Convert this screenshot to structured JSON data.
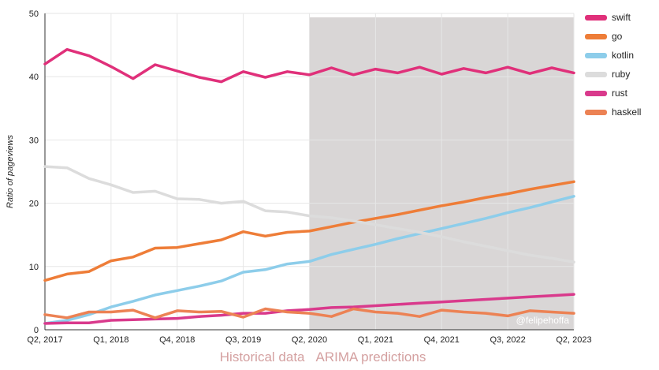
{
  "chart_data": {
    "type": "line",
    "title": "",
    "xlabel": "",
    "ylabel": "Ratio of pageviews",
    "ylim": [
      0,
      50
    ],
    "y_ticks": [
      0,
      10,
      20,
      30,
      40,
      50
    ],
    "x_count": 25,
    "x_tick_labels": [
      {
        "index": 0,
        "label": "Q2, 2017"
      },
      {
        "index": 3,
        "label": "Q1, 2018"
      },
      {
        "index": 6,
        "label": "Q4, 2018"
      },
      {
        "index": 9,
        "label": "Q3, 2019"
      },
      {
        "index": 12,
        "label": "Q2, 2020"
      },
      {
        "index": 15,
        "label": "Q1, 2021"
      },
      {
        "index": 18,
        "label": "Q4, 2021"
      },
      {
        "index": 21,
        "label": "Q3, 2022"
      },
      {
        "index": 24,
        "label": "Q2, 2023"
      }
    ],
    "grid": true,
    "prediction_start_index": 12,
    "region_labels": {
      "historical": "Historical data",
      "predictions": "ARIMA predictions"
    },
    "legend_position": "right",
    "annotation": "@felipehoffa",
    "series": [
      {
        "name": "swift",
        "color": "#e0307a",
        "values": [
          42.0,
          44.3,
          43.3,
          41.6,
          39.7,
          41.9,
          40.9,
          39.9,
          39.2,
          40.8,
          39.9,
          40.8,
          40.3,
          41.4,
          40.3,
          41.2,
          40.6,
          41.5,
          40.4,
          41.3,
          40.6,
          41.5,
          40.5,
          41.4,
          40.6
        ]
      },
      {
        "name": "go",
        "color": "#ee7d38",
        "values": [
          7.8,
          8.8,
          9.2,
          10.9,
          11.5,
          12.9,
          13.0,
          13.6,
          14.2,
          15.5,
          14.8,
          15.4,
          15.6,
          16.3,
          17.0,
          17.6,
          18.2,
          18.9,
          19.6,
          20.2,
          20.9,
          21.5,
          22.2,
          22.8,
          23.4
        ]
      },
      {
        "name": "kotlin",
        "color": "#8dcdea",
        "values": [
          1.0,
          1.5,
          2.4,
          3.6,
          4.5,
          5.5,
          6.2,
          6.9,
          7.7,
          9.1,
          9.5,
          10.4,
          10.8,
          11.9,
          12.7,
          13.5,
          14.4,
          15.2,
          16.0,
          16.8,
          17.6,
          18.5,
          19.3,
          20.2,
          21.1
        ]
      },
      {
        "name": "ruby",
        "color": "#dcdcdc",
        "values": [
          25.8,
          25.6,
          23.9,
          22.9,
          21.7,
          21.9,
          20.7,
          20.6,
          20.0,
          20.3,
          18.8,
          18.6,
          18.0,
          17.7,
          17.2,
          16.6,
          16.0,
          15.4,
          14.7,
          13.9,
          13.2,
          12.5,
          11.8,
          11.3,
          10.7
        ]
      },
      {
        "name": "rust",
        "color": "#d93a8c",
        "values": [
          1.0,
          1.1,
          1.1,
          1.5,
          1.6,
          1.7,
          1.8,
          2.1,
          2.3,
          2.6,
          2.6,
          3.0,
          3.2,
          3.5,
          3.6,
          3.8,
          4.0,
          4.2,
          4.4,
          4.6,
          4.8,
          5.0,
          5.2,
          5.4,
          5.6
        ]
      },
      {
        "name": "haskell",
        "color": "#ec8254",
        "values": [
          2.4,
          1.9,
          2.8,
          2.8,
          3.1,
          1.9,
          3.0,
          2.8,
          2.9,
          2.0,
          3.3,
          2.8,
          2.6,
          2.1,
          3.3,
          2.8,
          2.6,
          2.1,
          3.1,
          2.8,
          2.6,
          2.2,
          3.0,
          2.8,
          2.6
        ]
      }
    ]
  }
}
